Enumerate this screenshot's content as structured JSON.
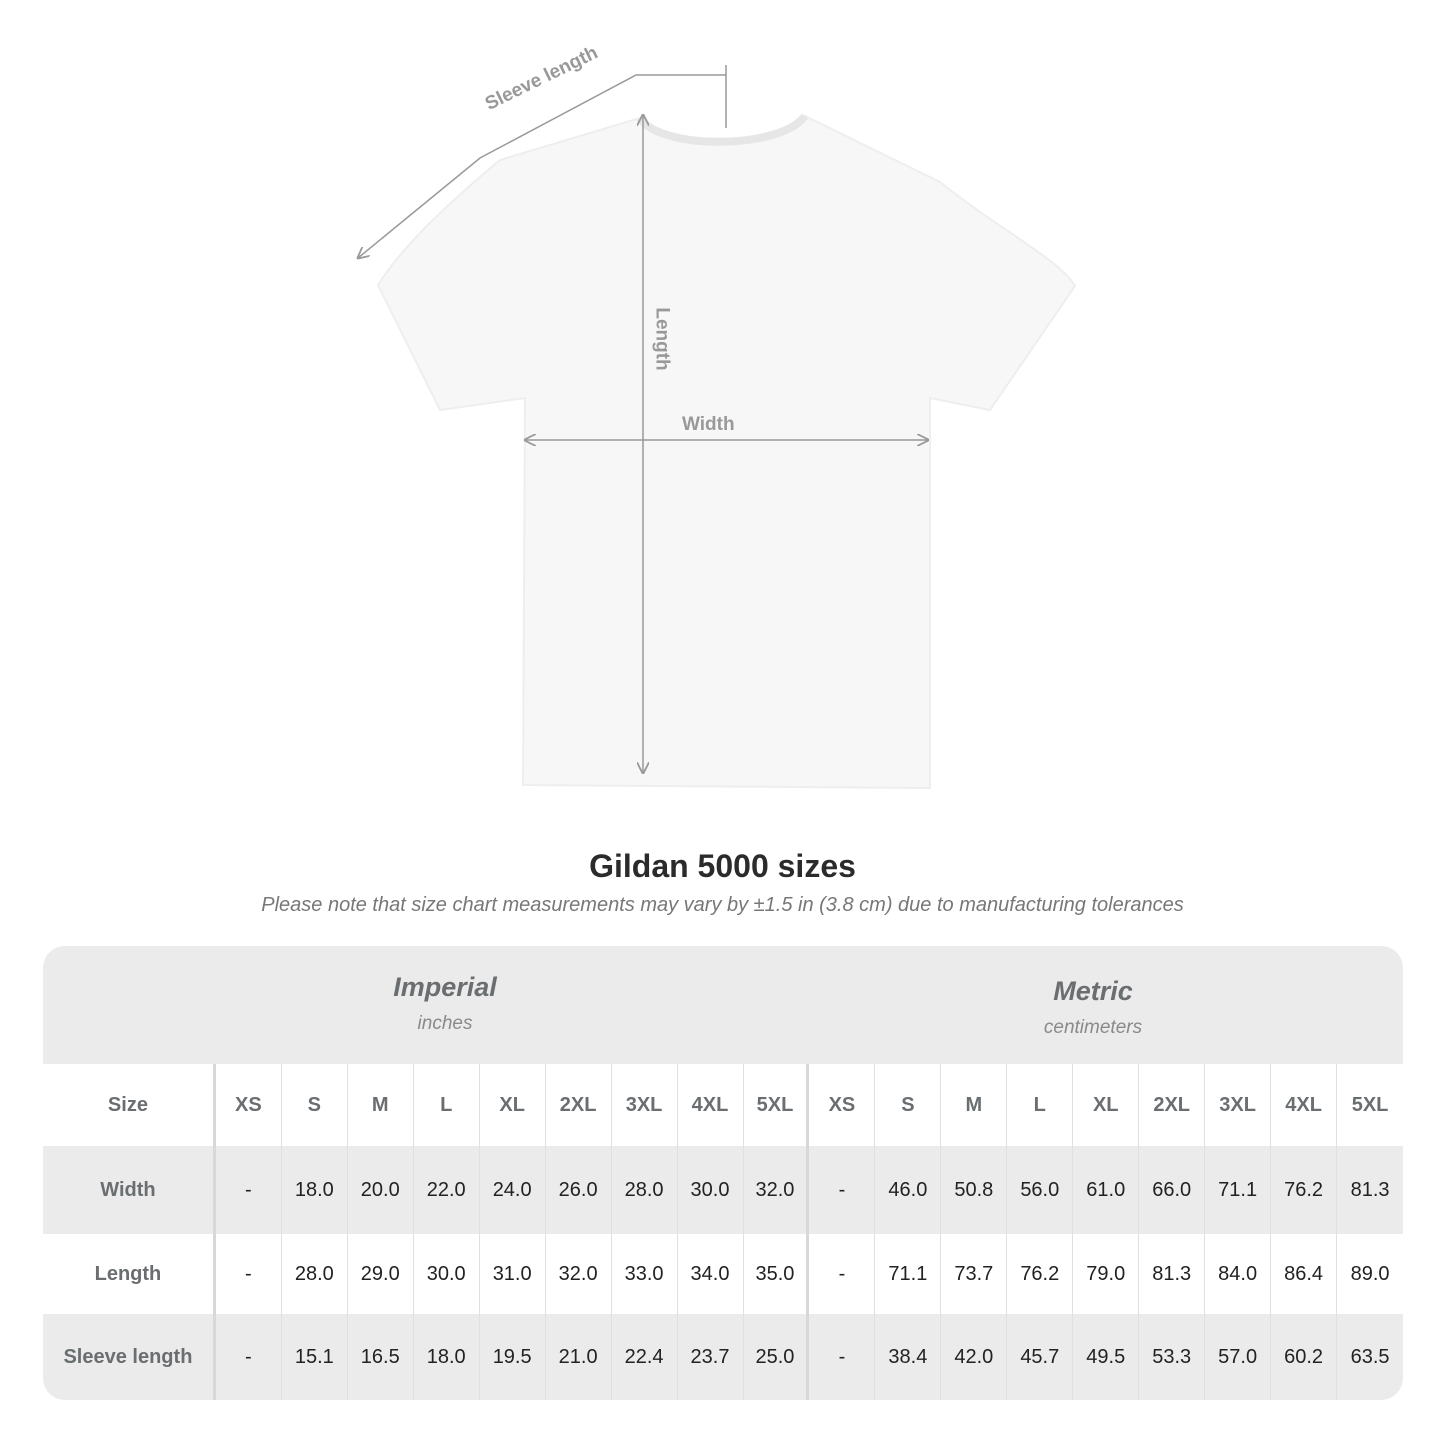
{
  "diagram": {
    "labels": {
      "sleeve": "Sleeve length",
      "length": "Length",
      "width": "Width"
    },
    "line_color": "#999999"
  },
  "title": "Gildan 5000 sizes",
  "subtitle": "Please note that size chart measurements may vary by ±1.5 in (3.8 cm) due to manufacturing tolerances",
  "table": {
    "imperial": {
      "name": "Imperial",
      "unit": "inches"
    },
    "metric": {
      "name": "Metric",
      "unit": "centimeters"
    },
    "size_label": "Size",
    "sizes": [
      "XS",
      "S",
      "M",
      "L",
      "XL",
      "2XL",
      "3XL",
      "4XL",
      "5XL"
    ],
    "rows": [
      {
        "label": "Width",
        "imperial": [
          "-",
          "18.0",
          "20.0",
          "22.0",
          "24.0",
          "26.0",
          "28.0",
          "30.0",
          "32.0"
        ],
        "metric": [
          "-",
          "46.0",
          "50.8",
          "56.0",
          "61.0",
          "66.0",
          "71.1",
          "76.2",
          "81.3"
        ]
      },
      {
        "label": "Length",
        "imperial": [
          "-",
          "28.0",
          "29.0",
          "30.0",
          "31.0",
          "32.0",
          "33.0",
          "34.0",
          "35.0"
        ],
        "metric": [
          "-",
          "71.1",
          "73.7",
          "76.2",
          "79.0",
          "81.3",
          "84.0",
          "86.4",
          "89.0"
        ]
      },
      {
        "label": "Sleeve length",
        "imperial": [
          "-",
          "15.1",
          "16.5",
          "18.0",
          "19.5",
          "21.0",
          "22.4",
          "23.7",
          "25.0"
        ],
        "metric": [
          "-",
          "38.4",
          "42.0",
          "45.7",
          "49.5",
          "53.3",
          "57.0",
          "60.2",
          "63.5"
        ]
      }
    ],
    "colors": {
      "band": "#ebebeb",
      "label_text": "#6a6e70"
    }
  }
}
